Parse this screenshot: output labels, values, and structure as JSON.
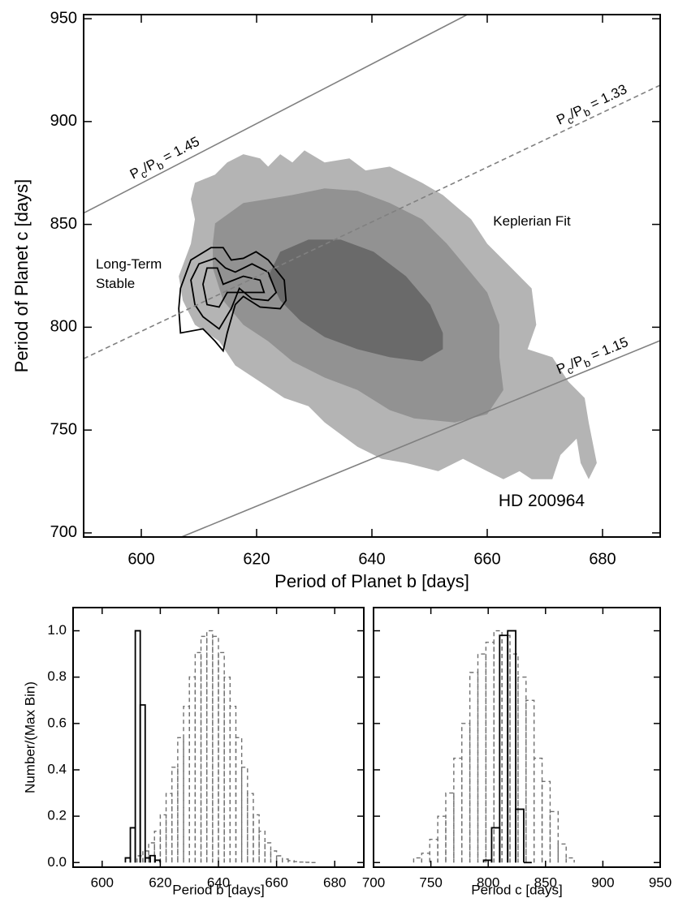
{
  "chart_data": [
    {
      "type": "contour",
      "xlabel": "Period of Planet b [days]",
      "ylabel": "Period of Planet c [days]",
      "text": "HD 200964",
      "xlim": [
        590,
        690
      ],
      "ylim": [
        698,
        952
      ],
      "xticks": [
        600,
        620,
        640,
        660,
        680
      ],
      "yticks": [
        700,
        750,
        800,
        850,
        900,
        950
      ],
      "series": [
        {
          "name": "Keplerian Fit",
          "color": "#808080",
          "fill_colors": [
            "#b4b4b4",
            "#929292",
            "#6a6a6a"
          ],
          "contours": [
            {
              "x": [
                608.6,
                609.3,
                612.8,
                614.9,
                617.7,
                620.6,
                622.0,
                624.1,
                626.2,
                628.3,
                631.8,
                636.1,
                638.9,
                643.1,
                648.7,
                652.3,
                657.2,
                660.0,
                664.2,
                667.7,
                668.5,
                667.0,
                671.3,
                674.1,
                676.9,
                677.6,
                679.0,
                677.6,
                676.2,
                675.5,
                672.7,
                671.3,
                667.7,
                665.6,
                662.8,
                660.0,
                655.8,
                651.5,
                645.9,
                641.7,
                637.5,
                631.8,
                629.0,
                624.8,
                620.6,
                616.3,
                613.5,
                609.3,
                607.2,
                606.5,
                608.6,
                609.3
              ],
              "y": [
                862.3,
                870.2,
                874.2,
                880.1,
                884.1,
                882.1,
                878.1,
                884.1,
                880.1,
                886.0,
                880.1,
                882.1,
                876.2,
                878.1,
                870.2,
                864.3,
                852.5,
                840.6,
                828.8,
                818.9,
                801.2,
                789.3,
                785.4,
                773.5,
                765.6,
                753.7,
                734.0,
                726.1,
                734.0,
                745.8,
                737.9,
                726.1,
                726.1,
                730.0,
                726.1,
                730.0,
                736.0,
                730.0,
                734.0,
                736.0,
                741.9,
                753.7,
                761.6,
                765.6,
                773.5,
                781.4,
                793.2,
                801.2,
                813.0,
                824.8,
                840.6,
                852.5
              ]
            },
            {
              "x": [
                612.8,
                617.7,
                622.0,
                626.2,
                631.8,
                637.5,
                643.1,
                648.7,
                653.0,
                656.5,
                660.0,
                662.1,
                662.1,
                662.8,
                660.0,
                654.4,
                647.3,
                643.1,
                637.5,
                631.8,
                626.2,
                622.0,
                617.7,
                614.2,
                612.4,
                612.4
              ],
              "y": [
                850.5,
                860.4,
                862.3,
                864.3,
                867.5,
                866.3,
                860.4,
                852.5,
                840.6,
                828.8,
                816.9,
                801.2,
                785.4,
                769.5,
                757.7,
                753.7,
                755.7,
                759.7,
                769.5,
                775.5,
                783.4,
                793.2,
                801.2,
                813.0,
                828.8,
                840.6
              ]
            },
            {
              "x": [
                624.1,
                629.0,
                634.6,
                640.3,
                645.9,
                650.1,
                652.3,
                652.3,
                648.7,
                643.1,
                637.5,
                631.8,
                627.6,
                624.1,
                622.0
              ],
              "y": [
                836.7,
                842.6,
                842.6,
                836.7,
                824.8,
                811.0,
                797.2,
                789.3,
                783.4,
                785.4,
                789.3,
                795.2,
                803.1,
                813.0,
                824.8
              ]
            }
          ]
        },
        {
          "name": [
            "Long-Term",
            "Stable"
          ],
          "color": "#000000",
          "contours": [
            {
              "x": [
                606.8,
                608.6,
                612.1,
                614.2,
                615.6,
                617.7,
                619.9,
                622.0,
                624.8,
                625.1,
                624.1,
                620.6,
                617.7,
                616.3,
                614.9,
                614.2,
                612.8,
                610.7,
                606.8,
                606.5
              ],
              "y": [
                818.9,
                832.7,
                838.7,
                838.7,
                832.7,
                833.5,
                836.7,
                832.7,
                822.9,
                813.0,
                809.0,
                809.8,
                815.0,
                811.0,
                797.2,
                788.5,
                793.2,
                799.2,
                797.2,
                809.0
              ]
            },
            {
              "x": [
                608.6,
                610.0,
                612.8,
                614.6,
                616.3,
                619.2,
                622.0,
                623.4,
                622.0,
                619.2,
                617.0,
                615.6,
                613.5,
                610.7,
                609.3
              ],
              "y": [
                822.9,
                830.8,
                833.5,
                828.8,
                826.8,
                830.8,
                826.8,
                816.9,
                813.0,
                813.8,
                818.9,
                809.0,
                799.2,
                805.1,
                811.0
              ]
            },
            {
              "x": [
                610.7,
                611.4,
                613.2,
                614.2,
                617.7,
                620.6,
                621.3,
                618.5,
                614.9,
                613.5,
                611.4
              ],
              "y": [
                820.9,
                828.8,
                828.8,
                820.9,
                824.8,
                822.9,
                816.9,
                816.9,
                816.9,
                809.8,
                811.0
              ]
            }
          ]
        }
      ],
      "ratio_label": [
        "P",
        "c",
        "/P",
        "b",
        " = "
      ],
      "ratio_lines": [
        {
          "ratio": 1.45,
          "style": "solid",
          "color": "#808080"
        },
        {
          "ratio": 1.33,
          "style": "dashed",
          "color": "#808080"
        },
        {
          "ratio": 1.15,
          "style": "solid",
          "color": "#808080"
        }
      ]
    },
    {
      "type": "histogram",
      "xlabel": "Period b [days]",
      "ylabel": "Number/(Max Bin)",
      "xlim": [
        590,
        690
      ],
      "ylim": [
        -0.02,
        1.1
      ],
      "xticks": [
        600,
        620,
        640,
        660,
        680
      ],
      "yticks": [
        {
          "value": 0,
          "label": "0.0"
        },
        0.2,
        0.4,
        0.6,
        0.8,
        {
          "value": 1,
          "label": "1.0"
        }
      ],
      "show_ytick_labels": true,
      "series": [
        {
          "style": "dashed",
          "color": "#707070",
          "bins": [
            612,
            614,
            616,
            618,
            620,
            622,
            624,
            626,
            628,
            630,
            632,
            634,
            636,
            638,
            640,
            642,
            644,
            646,
            648,
            650,
            652,
            654,
            656,
            658,
            660,
            662,
            664,
            666,
            668,
            670,
            672,
            674
          ],
          "values": [
            0.029,
            0.05,
            0.085,
            0.135,
            0.206,
            0.298,
            0.411,
            0.539,
            0.674,
            0.801,
            0.906,
            0.976,
            1.0,
            0.976,
            0.906,
            0.8,
            0.674,
            0.539,
            0.411,
            0.298,
            0.206,
            0.135,
            0.085,
            0.05,
            0.029,
            0.015,
            0.008,
            0.004,
            0.002,
            0.001,
            0.0
          ]
        },
        {
          "style": "solid",
          "color": "#000000",
          "bins": [
            608.0,
            609.7,
            611.4,
            613.1,
            614.8,
            616.5,
            618.2,
            619.9
          ],
          "values": [
            0.02,
            0.15,
            1.0,
            0.68,
            0.02,
            0.03,
            0.01
          ]
        }
      ]
    },
    {
      "type": "histogram",
      "xlabel": "Period c [days]",
      "xlim": [
        700,
        950
      ],
      "ylim": [
        -0.02,
        1.1
      ],
      "xticks": [
        700,
        750,
        800,
        850,
        900,
        950
      ],
      "yticks": [
        0,
        0.2,
        0.4,
        0.6,
        0.8,
        1
      ],
      "show_ytick_labels": false,
      "series": [
        {
          "style": "dashed",
          "color": "#707070",
          "bins": [
            735,
            742,
            749,
            756,
            763,
            770,
            777,
            784,
            791,
            798,
            805,
            812,
            819,
            826,
            833,
            840,
            847,
            854,
            861,
            868,
            875
          ],
          "values": [
            0.02,
            0.04,
            0.1,
            0.2,
            0.3,
            0.45,
            0.6,
            0.82,
            0.9,
            0.95,
            1.0,
            0.98,
            0.9,
            0.8,
            0.7,
            0.45,
            0.35,
            0.22,
            0.08,
            0.02
          ]
        },
        {
          "style": "solid",
          "color": "#000000",
          "bins": [
            796,
            803,
            810,
            817,
            824,
            831,
            838
          ],
          "values": [
            0.01,
            0.15,
            0.98,
            1.0,
            0.23,
            0.0
          ]
        }
      ]
    }
  ]
}
